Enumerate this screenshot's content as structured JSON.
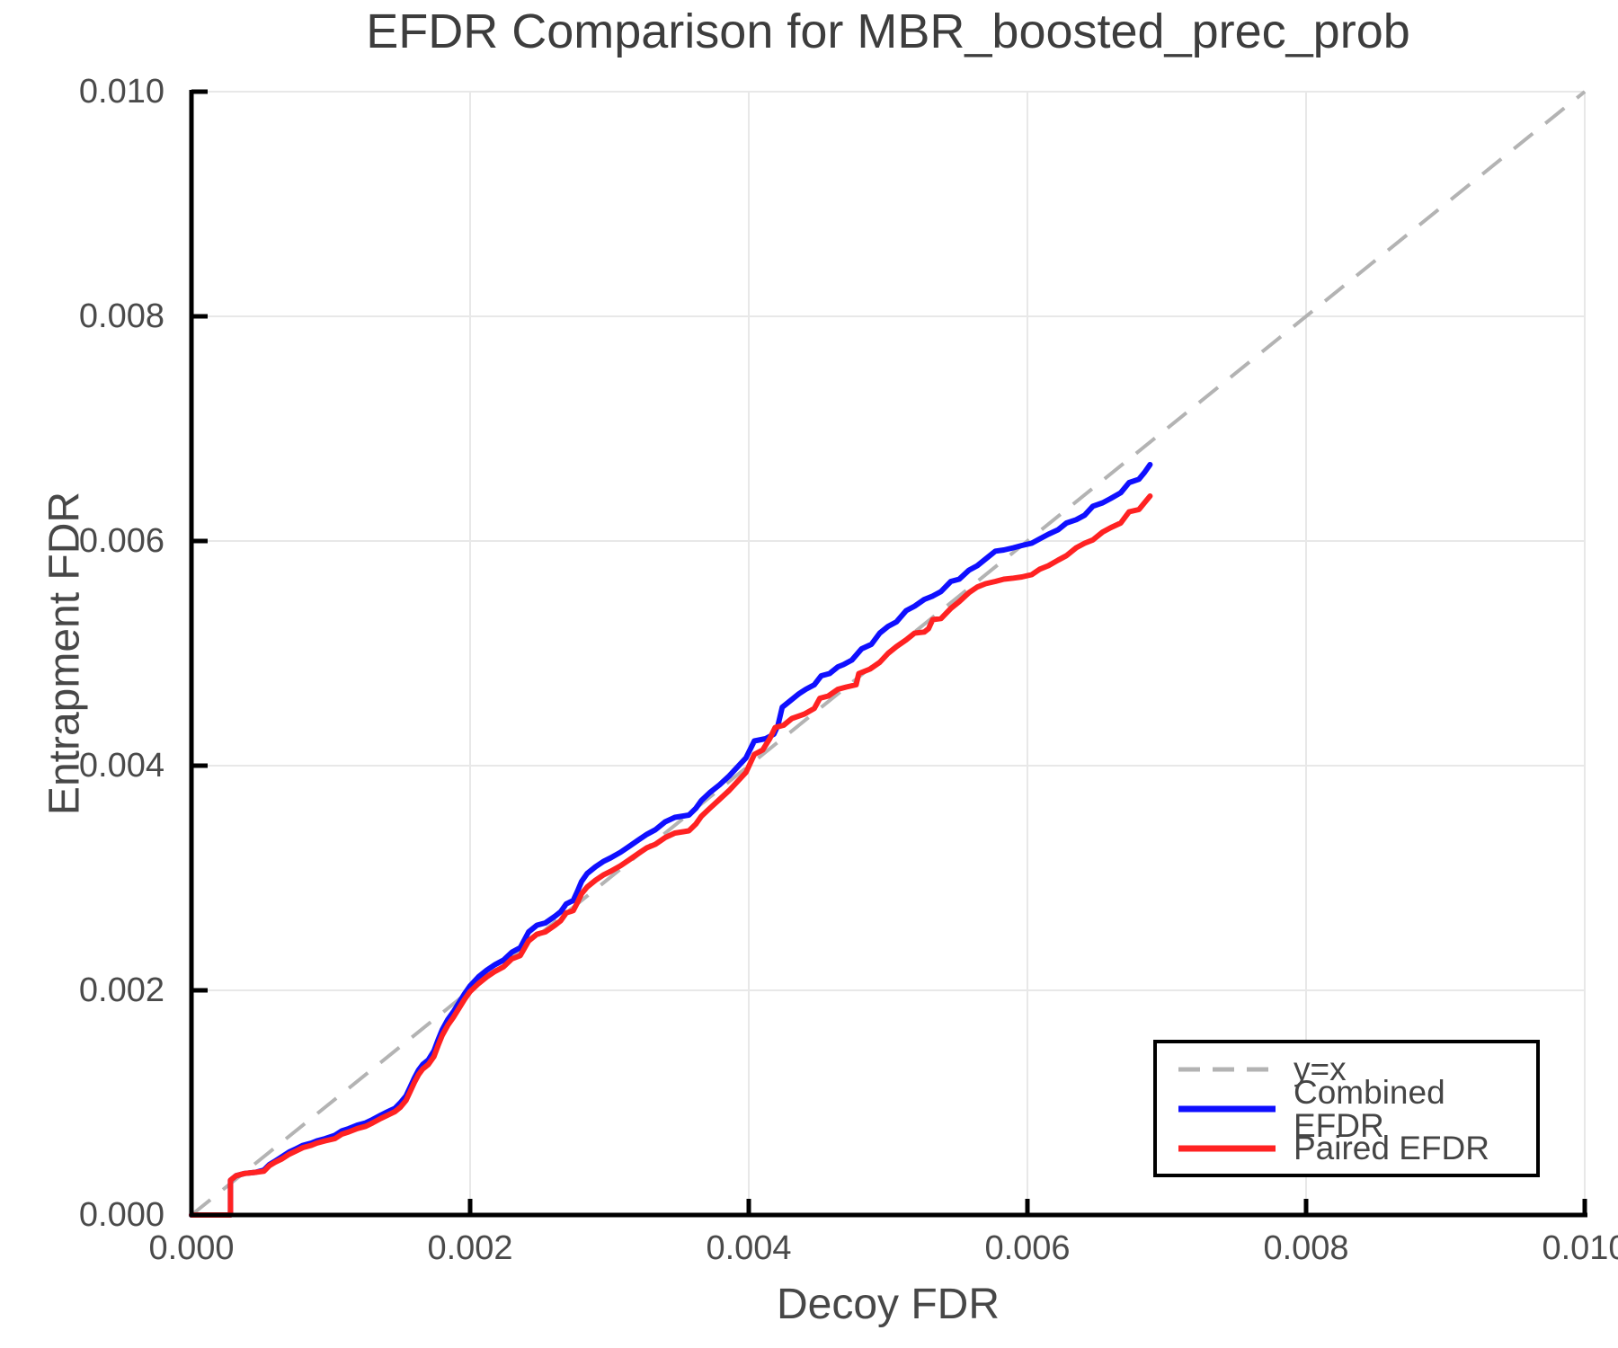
{
  "chart_data": {
    "type": "line",
    "title": "EFDR Comparison for MBR_boosted_prec_prob",
    "xlabel": "Decoy FDR",
    "ylabel": "Entrapment FDR",
    "xlim": [
      0.0,
      0.01
    ],
    "ylim": [
      0.0,
      0.01
    ],
    "x_tick_values": [
      0.0,
      0.002,
      0.004,
      0.006,
      0.008,
      0.01
    ],
    "y_tick_values": [
      0.0,
      0.002,
      0.004,
      0.006,
      0.008,
      0.01
    ],
    "x_tick_labels": [
      "0.000",
      "0.002",
      "0.004",
      "0.006",
      "0.008",
      "0.010"
    ],
    "y_tick_labels": [
      "0.000",
      "0.002",
      "0.004",
      "0.006",
      "0.008",
      "0.010"
    ],
    "grid": true,
    "grid_color": "#e8e8e8",
    "legend": {
      "position": "lower right",
      "entries": [
        {
          "label": "y=x",
          "color": "#b3b3b3",
          "style": "dashed"
        },
        {
          "label": "Combined EFDR",
          "color": "#0f0fff",
          "style": "solid"
        },
        {
          "label": "Paired EFDR",
          "color": "#ff2222",
          "style": "solid"
        }
      ]
    },
    "reference_line": {
      "label": "y=x",
      "from": [
        0.0,
        0.0
      ],
      "to": [
        0.01,
        0.01
      ],
      "color": "#b3b3b3",
      "style": "dashed"
    },
    "series": [
      {
        "name": "Combined EFDR",
        "color": "#0f0fff",
        "points": [
          [
            0.0,
            0.0
          ],
          [
            0.00028,
            0.0
          ],
          [
            0.00028,
            0.00031
          ],
          [
            0.00032,
            0.00035
          ],
          [
            0.00038,
            0.00037
          ],
          [
            0.00046,
            0.00038
          ],
          [
            0.00052,
            0.0004
          ],
          [
            0.00056,
            0.00045
          ],
          [
            0.0006,
            0.00048
          ],
          [
            0.00065,
            0.00052
          ],
          [
            0.0007,
            0.00056
          ],
          [
            0.00075,
            0.00059
          ],
          [
            0.0008,
            0.00062
          ],
          [
            0.00086,
            0.00064
          ],
          [
            0.0009,
            0.00066
          ],
          [
            0.00096,
            0.00068
          ],
          [
            0.00103,
            0.00071
          ],
          [
            0.00108,
            0.00075
          ],
          [
            0.00113,
            0.00077
          ],
          [
            0.00119,
            0.0008
          ],
          [
            0.00125,
            0.00082
          ],
          [
            0.0013,
            0.00085
          ],
          [
            0.00136,
            0.00089
          ],
          [
            0.00141,
            0.00092
          ],
          [
            0.00146,
            0.00095
          ],
          [
            0.0015,
            0.001
          ],
          [
            0.00154,
            0.00106
          ],
          [
            0.00157,
            0.00114
          ],
          [
            0.0016,
            0.00122
          ],
          [
            0.00163,
            0.00129
          ],
          [
            0.00166,
            0.00134
          ],
          [
            0.0017,
            0.00138
          ],
          [
            0.00174,
            0.00146
          ],
          [
            0.00177,
            0.00156
          ],
          [
            0.0018,
            0.00165
          ],
          [
            0.00184,
            0.00174
          ],
          [
            0.00188,
            0.00181
          ],
          [
            0.00192,
            0.00189
          ],
          [
            0.00196,
            0.00197
          ],
          [
            0.002,
            0.00204
          ],
          [
            0.00206,
            0.00212
          ],
          [
            0.00212,
            0.00218
          ],
          [
            0.00218,
            0.00223
          ],
          [
            0.00224,
            0.00227
          ],
          [
            0.0023,
            0.00234
          ],
          [
            0.00236,
            0.00238
          ],
          [
            0.00242,
            0.00252
          ],
          [
            0.00248,
            0.00258
          ],
          [
            0.00254,
            0.0026
          ],
          [
            0.00261,
            0.00266
          ],
          [
            0.00265,
            0.0027
          ],
          [
            0.00269,
            0.00277
          ],
          [
            0.00274,
            0.0028
          ],
          [
            0.00277,
            0.00288
          ],
          [
            0.0028,
            0.00297
          ],
          [
            0.00284,
            0.00304
          ],
          [
            0.0029,
            0.0031
          ],
          [
            0.00296,
            0.00315
          ],
          [
            0.00301,
            0.00318
          ],
          [
            0.00308,
            0.00323
          ],
          [
            0.00314,
            0.00328
          ],
          [
            0.00321,
            0.00334
          ],
          [
            0.00327,
            0.00339
          ],
          [
            0.00333,
            0.00343
          ],
          [
            0.0034,
            0.0035
          ],
          [
            0.00347,
            0.00354
          ],
          [
            0.00357,
            0.00356
          ],
          [
            0.00362,
            0.00362
          ],
          [
            0.00366,
            0.00369
          ],
          [
            0.00372,
            0.00376
          ],
          [
            0.00379,
            0.00383
          ],
          [
            0.00386,
            0.00391
          ],
          [
            0.00392,
            0.00399
          ],
          [
            0.00398,
            0.00407
          ],
          [
            0.00404,
            0.00422
          ],
          [
            0.00412,
            0.00424
          ],
          [
            0.00418,
            0.00428
          ],
          [
            0.00421,
            0.00436
          ],
          [
            0.00424,
            0.00452
          ],
          [
            0.0043,
            0.00458
          ],
          [
            0.00436,
            0.00464
          ],
          [
            0.00441,
            0.00468
          ],
          [
            0.00447,
            0.00472
          ],
          [
            0.00452,
            0.0048
          ],
          [
            0.00458,
            0.00482
          ],
          [
            0.00464,
            0.00488
          ],
          [
            0.00468,
            0.0049
          ],
          [
            0.00474,
            0.00494
          ],
          [
            0.00481,
            0.00504
          ],
          [
            0.00488,
            0.00508
          ],
          [
            0.00494,
            0.00518
          ],
          [
            0.005,
            0.00524
          ],
          [
            0.00506,
            0.00528
          ],
          [
            0.00513,
            0.00538
          ],
          [
            0.00519,
            0.00542
          ],
          [
            0.00526,
            0.00548
          ],
          [
            0.00532,
            0.00551
          ],
          [
            0.00538,
            0.00555
          ],
          [
            0.00545,
            0.00564
          ],
          [
            0.00551,
            0.00566
          ],
          [
            0.00558,
            0.00574
          ],
          [
            0.00564,
            0.00578
          ],
          [
            0.0057,
            0.00584
          ],
          [
            0.00577,
            0.00591
          ],
          [
            0.00583,
            0.00592
          ],
          [
            0.0059,
            0.00594
          ],
          [
            0.00596,
            0.00596
          ],
          [
            0.00603,
            0.00598
          ],
          [
            0.00609,
            0.00602
          ],
          [
            0.00615,
            0.00606
          ],
          [
            0.00622,
            0.0061
          ],
          [
            0.00628,
            0.00616
          ],
          [
            0.00635,
            0.00619
          ],
          [
            0.00641,
            0.00623
          ],
          [
            0.00647,
            0.00631
          ],
          [
            0.00654,
            0.00634
          ],
          [
            0.0066,
            0.00638
          ],
          [
            0.00667,
            0.00643
          ],
          [
            0.00673,
            0.00652
          ],
          [
            0.0068,
            0.00655
          ],
          [
            0.00684,
            0.00661
          ],
          [
            0.00688,
            0.00668
          ]
        ]
      },
      {
        "name": "Paired EFDR",
        "color": "#ff2222",
        "points": [
          [
            0.0,
            0.0
          ],
          [
            0.00028,
            0.0
          ],
          [
            0.00028,
            0.00031
          ],
          [
            0.00032,
            0.00035
          ],
          [
            0.00038,
            0.00037
          ],
          [
            0.00046,
            0.00038
          ],
          [
            0.00052,
            0.00039
          ],
          [
            0.00056,
            0.00044
          ],
          [
            0.0006,
            0.00047
          ],
          [
            0.00065,
            0.0005
          ],
          [
            0.0007,
            0.00054
          ],
          [
            0.00075,
            0.00057
          ],
          [
            0.0008,
            0.0006
          ],
          [
            0.00086,
            0.00062
          ],
          [
            0.0009,
            0.00064
          ],
          [
            0.00096,
            0.00066
          ],
          [
            0.00103,
            0.00068
          ],
          [
            0.00108,
            0.00072
          ],
          [
            0.00113,
            0.00074
          ],
          [
            0.00119,
            0.00077
          ],
          [
            0.00125,
            0.00079
          ],
          [
            0.0013,
            0.00082
          ],
          [
            0.00136,
            0.00086
          ],
          [
            0.00141,
            0.00089
          ],
          [
            0.00146,
            0.00092
          ],
          [
            0.0015,
            0.00096
          ],
          [
            0.00154,
            0.00102
          ],
          [
            0.00157,
            0.0011
          ],
          [
            0.0016,
            0.00118
          ],
          [
            0.00163,
            0.00125
          ],
          [
            0.00166,
            0.0013
          ],
          [
            0.0017,
            0.00134
          ],
          [
            0.00174,
            0.00141
          ],
          [
            0.00177,
            0.00151
          ],
          [
            0.0018,
            0.0016
          ],
          [
            0.00184,
            0.00169
          ],
          [
            0.00188,
            0.00176
          ],
          [
            0.00192,
            0.00184
          ],
          [
            0.00196,
            0.00192
          ],
          [
            0.002,
            0.00199
          ],
          [
            0.00206,
            0.00206
          ],
          [
            0.00212,
            0.00212
          ],
          [
            0.00218,
            0.00217
          ],
          [
            0.00224,
            0.00221
          ],
          [
            0.0023,
            0.00228
          ],
          [
            0.00236,
            0.00231
          ],
          [
            0.00242,
            0.00244
          ],
          [
            0.00248,
            0.0025
          ],
          [
            0.00254,
            0.00252
          ],
          [
            0.00261,
            0.00258
          ],
          [
            0.00265,
            0.00262
          ],
          [
            0.00269,
            0.00269
          ],
          [
            0.00274,
            0.00271
          ],
          [
            0.00277,
            0.00278
          ],
          [
            0.0028,
            0.00286
          ],
          [
            0.00284,
            0.00292
          ],
          [
            0.0029,
            0.00298
          ],
          [
            0.00296,
            0.00303
          ],
          [
            0.00301,
            0.00306
          ],
          [
            0.00308,
            0.00311
          ],
          [
            0.00314,
            0.00316
          ],
          [
            0.00321,
            0.00322
          ],
          [
            0.00327,
            0.00327
          ],
          [
            0.00333,
            0.0033
          ],
          [
            0.0034,
            0.00336
          ],
          [
            0.00347,
            0.0034
          ],
          [
            0.00357,
            0.00342
          ],
          [
            0.00362,
            0.00348
          ],
          [
            0.00366,
            0.00355
          ],
          [
            0.00372,
            0.00362
          ],
          [
            0.00379,
            0.0037
          ],
          [
            0.00386,
            0.00378
          ],
          [
            0.00392,
            0.00386
          ],
          [
            0.00398,
            0.00394
          ],
          [
            0.00404,
            0.0041
          ],
          [
            0.0041,
            0.00414
          ],
          [
            0.00415,
            0.00424
          ],
          [
            0.00419,
            0.00434
          ],
          [
            0.00425,
            0.00436
          ],
          [
            0.00431,
            0.00442
          ],
          [
            0.0044,
            0.00446
          ],
          [
            0.00447,
            0.00451
          ],
          [
            0.00451,
            0.0046
          ],
          [
            0.00457,
            0.00462
          ],
          [
            0.00464,
            0.00468
          ],
          [
            0.0047,
            0.0047
          ],
          [
            0.00477,
            0.00472
          ],
          [
            0.00479,
            0.00482
          ],
          [
            0.00487,
            0.00486
          ],
          [
            0.00494,
            0.00492
          ],
          [
            0.005,
            0.005
          ],
          [
            0.00506,
            0.00506
          ],
          [
            0.00513,
            0.00512
          ],
          [
            0.00519,
            0.00518
          ],
          [
            0.00526,
            0.00519
          ],
          [
            0.00529,
            0.00522
          ],
          [
            0.00532,
            0.0053
          ],
          [
            0.00538,
            0.00531
          ],
          [
            0.00545,
            0.0054
          ],
          [
            0.00551,
            0.00546
          ],
          [
            0.00558,
            0.00554
          ],
          [
            0.00564,
            0.00559
          ],
          [
            0.0057,
            0.00562
          ],
          [
            0.00577,
            0.00564
          ],
          [
            0.00583,
            0.00566
          ],
          [
            0.0059,
            0.00567
          ],
          [
            0.00596,
            0.00568
          ],
          [
            0.00603,
            0.0057
          ],
          [
            0.00609,
            0.00575
          ],
          [
            0.00615,
            0.00578
          ],
          [
            0.00622,
            0.00583
          ],
          [
            0.00628,
            0.00587
          ],
          [
            0.00635,
            0.00594
          ],
          [
            0.00641,
            0.00598
          ],
          [
            0.00647,
            0.00601
          ],
          [
            0.00654,
            0.00608
          ],
          [
            0.0066,
            0.00612
          ],
          [
            0.00667,
            0.00616
          ],
          [
            0.00673,
            0.00626
          ],
          [
            0.0068,
            0.00628
          ],
          [
            0.00684,
            0.00634
          ],
          [
            0.00688,
            0.0064
          ]
        ]
      }
    ]
  }
}
